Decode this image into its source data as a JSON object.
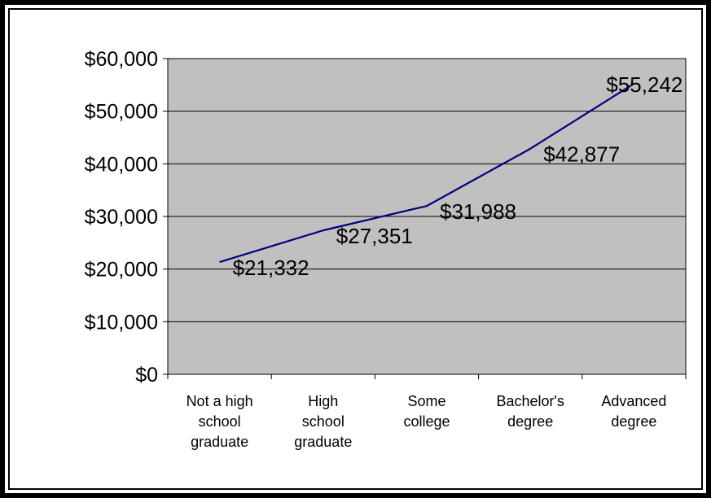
{
  "chart_data": {
    "type": "line",
    "title": "",
    "xlabel": "",
    "ylabel": "",
    "categories": [
      [
        "Not a high",
        "school",
        "graduate"
      ],
      [
        "High",
        "school",
        "graduate"
      ],
      [
        "Some",
        "college"
      ],
      [
        "Bachelor's",
        "degree"
      ],
      [
        "Advanced",
        "degree"
      ]
    ],
    "series": [
      {
        "values": [
          21332,
          27351,
          31988,
          42877,
          55242
        ],
        "data_labels": [
          "$21,332",
          "$27,351",
          "$31,988",
          "$42,877",
          "$55,242"
        ],
        "color": "#000080"
      }
    ],
    "ylim": [
      0,
      60000
    ],
    "y_ticks": [
      0,
      10000,
      20000,
      30000,
      40000,
      50000,
      60000
    ],
    "y_tick_labels": [
      "$0",
      "$10,000",
      "$20,000",
      "$30,000",
      "$40,000",
      "$50,000",
      "$60,000"
    ],
    "grid": true,
    "legend": "none",
    "plot_background": "#c0c0c0"
  }
}
